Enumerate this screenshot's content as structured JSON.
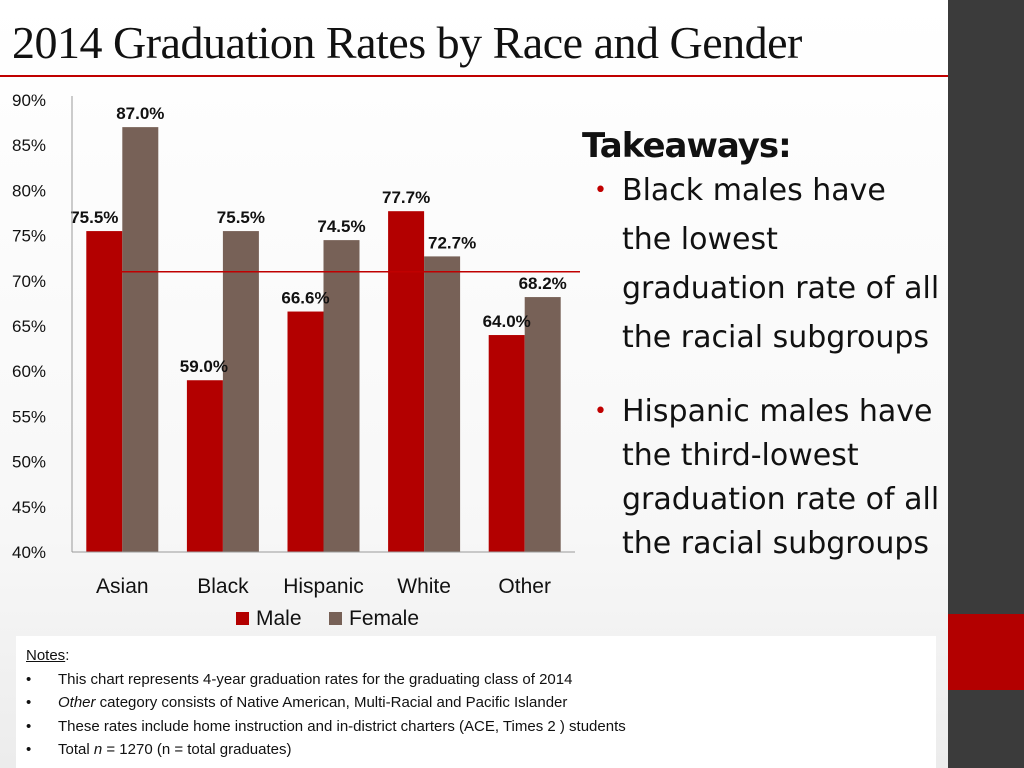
{
  "title": "2014 Graduation Rates by Race and Gender",
  "colors": {
    "male": "#b30000",
    "female": "#776157",
    "accent": "#c00000",
    "band": "#3b3b3b"
  },
  "chart_data": {
    "type": "bar",
    "categories": [
      "Asian",
      "Black",
      "Hispanic",
      "White",
      "Other"
    ],
    "series": [
      {
        "name": "Male",
        "values": [
          75.5,
          59.0,
          66.6,
          77.7,
          64.0
        ],
        "labels": [
          "75.5%",
          "59.0%",
          "66.6%",
          "77.7%",
          "64.0%"
        ]
      },
      {
        "name": "Female",
        "values": [
          87.0,
          75.5,
          74.5,
          72.7,
          68.2
        ],
        "labels": [
          "87.0%",
          "75.5%",
          "74.5%",
          "72.7%",
          "68.2%"
        ]
      }
    ],
    "ylim": [
      40,
      90
    ],
    "yticks": [
      "40%",
      "45%",
      "50%",
      "55%",
      "60%",
      "65%",
      "70%",
      "75%",
      "80%",
      "85%",
      "90%"
    ],
    "reference_line": 71,
    "legend_position": "bottom",
    "grid": false
  },
  "takeaways": {
    "heading": "Takeaways:",
    "bullet_symbol": "•",
    "items": [
      "Black males have the lowest graduation rate of all the racial subgroups",
      "Hispanic males have the third-lowest graduation rate of all the racial subgroups"
    ]
  },
  "notes": {
    "header": "Notes",
    "header_suffix": ":",
    "bullet_symbol": "•",
    "item1": "This chart represents  4-year graduation rates for the graduating class of 2014",
    "item2_em": "Other",
    "item2_rest": " category consists of Native American, Multi-Racial and Pacific Islander",
    "item3": "These rates include home instruction and in-district charters (ACE, Times 2 ) students",
    "item4_pre": "Total  ",
    "item4_em": "n",
    "item4_rest": "  =  1270 (n = total graduates)"
  }
}
